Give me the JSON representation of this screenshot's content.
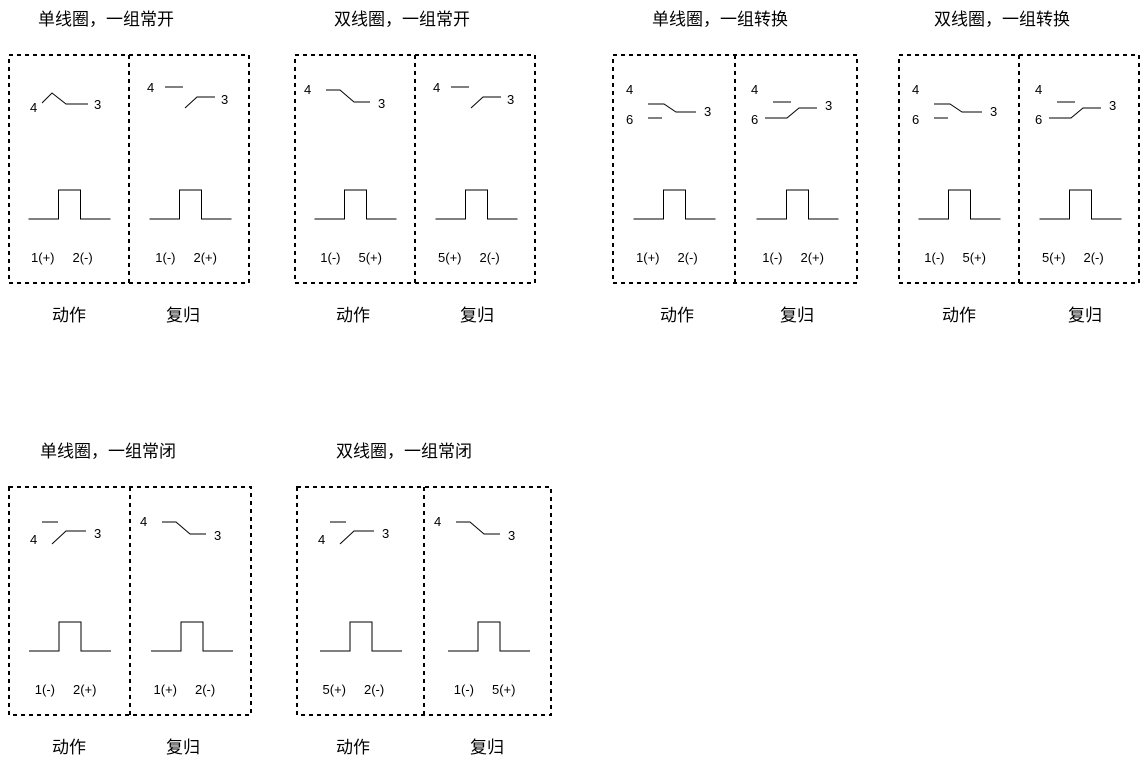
{
  "panels": [
    {
      "title": "单线圈，一组常开",
      "labels": [
        "动作",
        "复归"
      ],
      "halves": [
        {
          "type": "no_open",
          "terminals": [
            "4",
            "3"
          ],
          "pulse": [
            "1(+)",
            "2(-)"
          ]
        },
        {
          "type": "no_closed_right",
          "terminals": [
            "4",
            "3"
          ],
          "pulse": [
            "1(-)",
            "2(+)"
          ]
        }
      ]
    },
    {
      "title": "双线圈，一组常开",
      "labels": [
        "动作",
        "复归"
      ],
      "halves": [
        {
          "type": "nc_open",
          "terminals": [
            "4",
            "3"
          ],
          "pulse": [
            "1(-)",
            "5(+)"
          ]
        },
        {
          "type": "no_closed_right",
          "terminals": [
            "4",
            "3"
          ],
          "pulse": [
            "5(+)",
            "2(-)"
          ]
        }
      ]
    },
    {
      "title": "单线圈，一组转换",
      "labels": [
        "动作",
        "复归"
      ],
      "halves": [
        {
          "type": "co_to4",
          "terminals": [
            "4",
            "6",
            "3"
          ],
          "pulse": [
            "1(+)",
            "2(-)"
          ]
        },
        {
          "type": "co_to6",
          "terminals": [
            "4",
            "6",
            "3"
          ],
          "pulse": [
            "1(-)",
            "2(+)"
          ]
        }
      ]
    },
    {
      "title": "双线圈，一组转换",
      "labels": [
        "动作",
        "复归"
      ],
      "halves": [
        {
          "type": "co_to4",
          "terminals": [
            "4",
            "6",
            "3"
          ],
          "pulse": [
            "1(-)",
            "5(+)"
          ]
        },
        {
          "type": "co_to6",
          "terminals": [
            "4",
            "6",
            "3"
          ],
          "pulse": [
            "5(+)",
            "2(-)"
          ]
        }
      ]
    },
    {
      "title": "单线圈，一组常闭",
      "labels": [
        "动作",
        "复归"
      ],
      "halves": [
        {
          "type": "no_closed_left",
          "terminals": [
            "4",
            "3"
          ],
          "pulse": [
            "1(-)",
            "2(+)"
          ]
        },
        {
          "type": "nc_open",
          "terminals": [
            "4",
            "3"
          ],
          "pulse": [
            "1(+)",
            "2(-)"
          ]
        }
      ]
    },
    {
      "title": "双线圈，一组常闭",
      "labels": [
        "动作",
        "复归"
      ],
      "halves": [
        {
          "type": "no_closed_left",
          "terminals": [
            "4",
            "3"
          ],
          "pulse": [
            "5(+)",
            "2(-)"
          ]
        },
        {
          "type": "nc_open",
          "terminals": [
            "4",
            "3"
          ],
          "pulse": [
            "1(-)",
            "5(+)"
          ]
        }
      ]
    }
  ]
}
